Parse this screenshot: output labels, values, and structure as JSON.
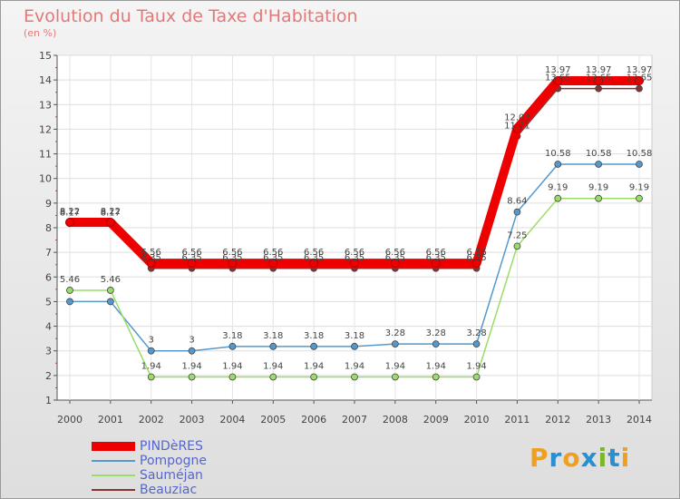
{
  "title": "Evolution du Taux de Taxe d'Habitation",
  "subtitle": "(en %)",
  "logo": {
    "text": [
      "P",
      "r",
      "o",
      "x",
      "i",
      "t",
      "i"
    ],
    "colors": [
      "#f0a020",
      "#2a8fd0",
      "#f0a020",
      "#2a8fd0",
      "#7ab828",
      "#2a8fd0",
      "#f0a020"
    ]
  },
  "chart_data": {
    "type": "line",
    "x": [
      "2000",
      "2001",
      "2002",
      "2003",
      "2004",
      "2005",
      "2006",
      "2007",
      "2008",
      "2009",
      "2010",
      "2011",
      "2012",
      "2013",
      "2014"
    ],
    "ylim": [
      1,
      15
    ],
    "yticks": [
      "1",
      "2",
      "3",
      "4",
      "5",
      "6",
      "7",
      "8",
      "9",
      "10",
      "11",
      "12",
      "13",
      "14",
      "15"
    ],
    "grid": true,
    "legend_position": "bottom-left",
    "series": [
      {
        "name": "PINDèRES",
        "color": "#ee0000",
        "values": [
          8.22,
          8.22,
          6.56,
          6.56,
          6.56,
          6.56,
          6.56,
          6.56,
          6.56,
          6.56,
          6.56,
          12.03,
          13.97,
          13.97,
          13.97
        ],
        "labels": [
          "8.22",
          "8.22",
          "6.56",
          "6.56",
          "6.56",
          "6.56",
          "6.56",
          "6.56",
          "6.56",
          "6.56",
          "6.56",
          "12.03",
          "13.97",
          "13.97",
          "13.97"
        ]
      },
      {
        "name": "Pompogne",
        "color": "#5599cc",
        "values": [
          5,
          5,
          3,
          3,
          3.18,
          3.18,
          3.18,
          3.18,
          3.28,
          3.28,
          3.28,
          8.64,
          10.58,
          10.58,
          10.58
        ],
        "labels": [
          "",
          "",
          "3",
          "3",
          "3.18",
          "3.18",
          "3.18",
          "3.18",
          "3.28",
          "3.28",
          "3.28",
          "8.64",
          "10.58",
          "10.58",
          "10.58"
        ]
      },
      {
        "name": "Sauméjan",
        "color": "#99dd66",
        "values": [
          5.46,
          5.46,
          1.94,
          1.94,
          1.94,
          1.94,
          1.94,
          1.94,
          1.94,
          1.94,
          1.94,
          7.25,
          9.19,
          9.19,
          9.19
        ],
        "labels": [
          "5.46",
          "5.46",
          "1.94",
          "1.94",
          "1.94",
          "1.94",
          "1.94",
          "1.94",
          "1.94",
          "1.94",
          "1.94",
          "7.25",
          "9.19",
          "9.19",
          "9.19"
        ]
      },
      {
        "name": "Beauziac",
        "color": "#883333",
        "values": [
          8.17,
          8.17,
          6.35,
          6.35,
          6.35,
          6.35,
          6.35,
          6.35,
          6.35,
          6.35,
          6.35,
          11.71,
          13.65,
          13.65,
          13.65
        ],
        "labels": [
          "8.17",
          "8.17",
          "6.35",
          "6.35",
          "6.35",
          "6.35",
          "6.35",
          "6.35",
          "6.35",
          "6.35",
          "6.35",
          "11.71",
          "13.65",
          "13.65",
          "13.65"
        ]
      }
    ]
  }
}
